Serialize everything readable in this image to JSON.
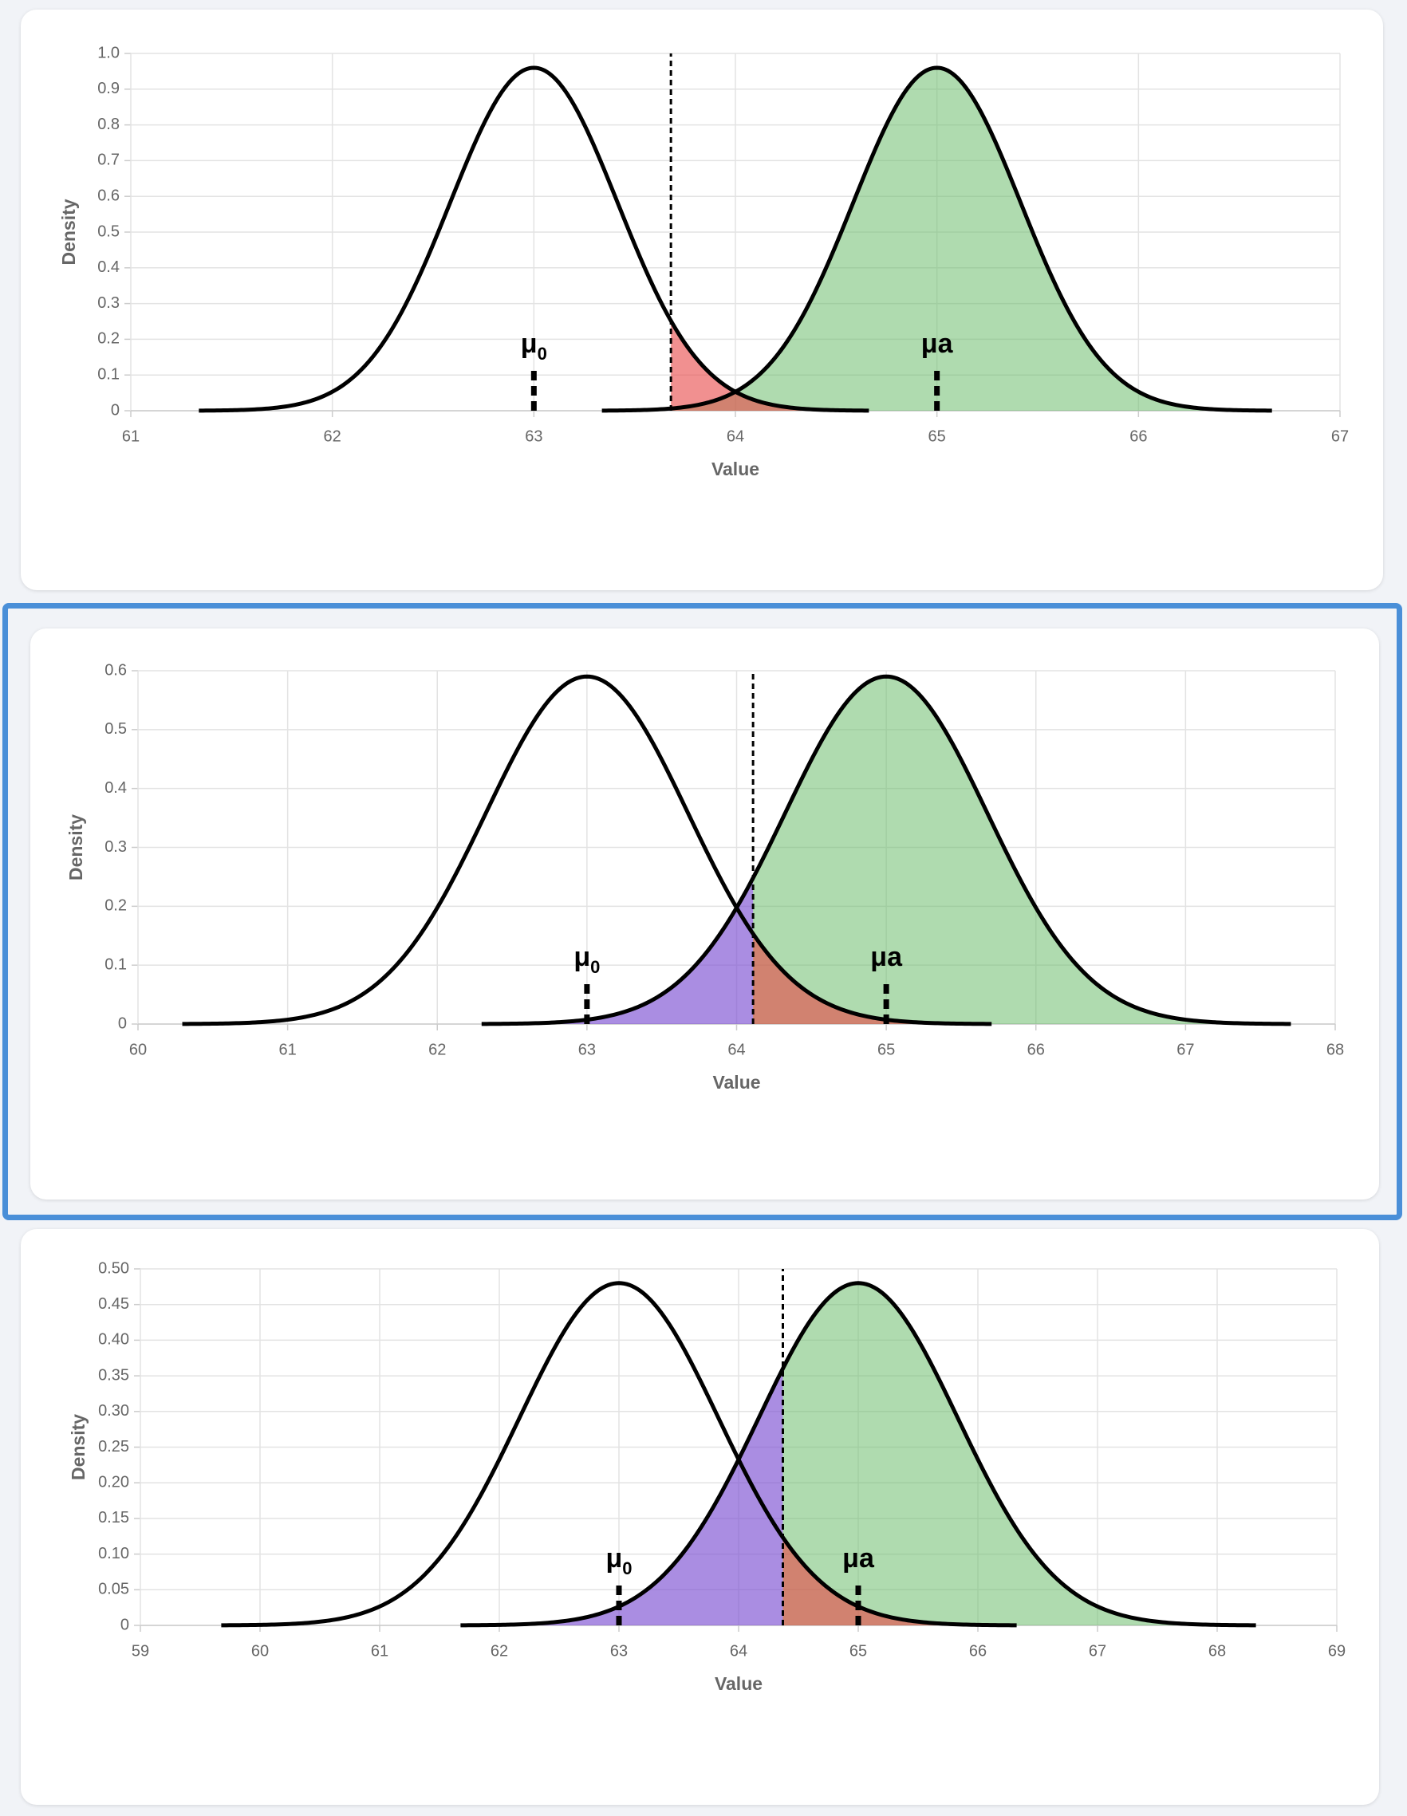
{
  "chart_data": [
    {
      "type": "density",
      "xlabel": "Value",
      "ylabel": "Density",
      "xlim": [
        61,
        67
      ],
      "xticks": [
        61,
        62,
        63,
        64,
        65,
        66,
        67
      ],
      "ylim": [
        0,
        1
      ],
      "yticks": [
        0,
        0.1,
        0.2,
        0.3,
        0.4,
        0.5,
        0.6,
        0.7,
        0.8,
        0.9,
        {
          "value": 1,
          "label": "1.0"
        }
      ],
      "grid": true,
      "critical_value": 63.68,
      "alpha_color": "rgba(232,70,70,0.6)",
      "beta_color": "rgba(125,80,210,0.65)",
      "power_color": "rgba(110,190,110,0.55)",
      "distributions": [
        {
          "label": "μ",
          "subscript": "0",
          "mean": 63,
          "sd": 0.4156
        },
        {
          "label": "μa",
          "mean": 65,
          "sd": 0.4156
        }
      ]
    },
    {
      "type": "density",
      "xlabel": "Value",
      "ylabel": "Density",
      "xlim": [
        60,
        68
      ],
      "xticks": [
        60,
        61,
        62,
        63,
        64,
        65,
        66,
        67,
        68
      ],
      "ylim": [
        0,
        0.6
      ],
      "yticks": [
        0,
        0.1,
        0.2,
        0.3,
        0.4,
        0.5,
        0.6
      ],
      "grid": true,
      "critical_value": 64.11,
      "alpha_color": "rgba(232,70,70,0.6)",
      "beta_color": "rgba(125,80,210,0.65)",
      "power_color": "rgba(110,190,110,0.55)",
      "distributions": [
        {
          "label": "μ",
          "subscript": "0",
          "mean": 63,
          "sd": 0.676
        },
        {
          "label": "μa",
          "mean": 65,
          "sd": 0.676
        }
      ]
    },
    {
      "type": "density",
      "xlabel": "Value",
      "ylabel": "Density",
      "xlim": [
        59,
        69
      ],
      "xticks": [
        59,
        60,
        61,
        62,
        63,
        64,
        65,
        66,
        67,
        68,
        69
      ],
      "ylim": [
        0,
        0.5
      ],
      "yticks": [
        0,
        0.05,
        {
          "value": 0.1,
          "label": "0.10"
        },
        0.15,
        {
          "value": 0.2,
          "label": "0.20"
        },
        0.25,
        {
          "value": 0.3,
          "label": "0.30"
        },
        0.35,
        {
          "value": 0.4,
          "label": "0.40"
        },
        0.45,
        {
          "value": 0.5,
          "label": "0.50"
        }
      ],
      "grid": true,
      "critical_value": 64.37,
      "alpha_color": "rgba(232,70,70,0.6)",
      "beta_color": "rgba(125,80,210,0.65)",
      "power_color": "rgba(110,190,110,0.55)",
      "distributions": [
        {
          "label": "μ",
          "subscript": "0",
          "mean": 63,
          "sd": 0.831
        },
        {
          "label": "μa",
          "mean": 65,
          "sd": 0.831
        }
      ]
    }
  ]
}
